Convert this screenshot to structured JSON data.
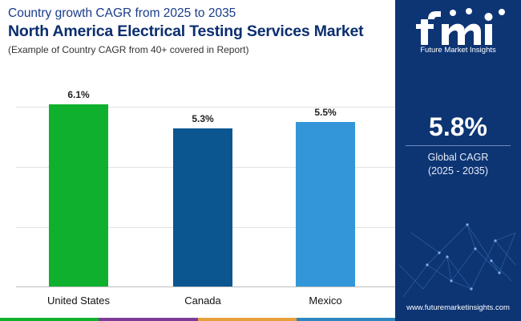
{
  "header": {
    "title_line1": "Country growth CAGR from 2025 to 2035",
    "title_line2": "North America Electrical Testing Services Market",
    "subtitle": "(Example of Country CAGR from 40+ covered in Report)"
  },
  "chart_data": {
    "type": "bar",
    "categories": [
      "United States",
      "Canada",
      "Mexico"
    ],
    "values": [
      6.1,
      5.3,
      5.5
    ],
    "value_labels": [
      "6.1%",
      "5.3%",
      "5.5%"
    ],
    "colors": [
      "#0fb02e",
      "#0b5591",
      "#3396d8"
    ],
    "title": "North America Electrical Testing Services Market",
    "xlabel": "",
    "ylabel": "",
    "ylim": [
      0,
      6.8
    ],
    "grid": true
  },
  "sidebar": {
    "brand": "Future Market Insights",
    "cagr_value": "5.8%",
    "cagr_label": "Global CAGR",
    "cagr_range": "(2025 - 2035)",
    "website": "www.futuremarketinsights.com"
  },
  "colors": {
    "panel": "#0d3574",
    "strip": [
      "#0fb02e",
      "#7d3c98",
      "#e8a13a",
      "#2e86c1"
    ]
  }
}
